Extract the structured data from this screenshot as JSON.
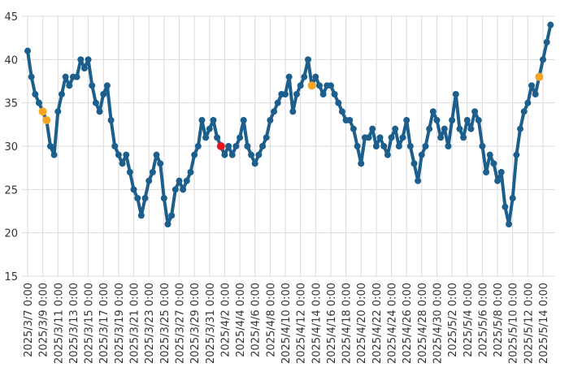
{
  "chart_data": {
    "type": "line",
    "x": [
      "2025/3/7 0:00",
      "2025/3/7 12:00",
      "2025/3/8 0:00",
      "2025/3/8 12:00",
      "2025/3/9 0:00",
      "2025/3/9 12:00",
      "2025/3/10 0:00",
      "2025/3/10 12:00",
      "2025/3/11 0:00",
      "2025/3/11 12:00",
      "2025/3/12 0:00",
      "2025/3/12 12:00",
      "2025/3/13 0:00",
      "2025/3/13 12:00",
      "2025/3/14 0:00",
      "2025/3/14 12:00",
      "2025/3/15 0:00",
      "2025/3/15 12:00",
      "2025/3/16 0:00",
      "2025/3/16 12:00",
      "2025/3/17 0:00",
      "2025/3/17 12:00",
      "2025/3/18 0:00",
      "2025/3/18 12:00",
      "2025/3/19 0:00",
      "2025/3/19 12:00",
      "2025/3/20 0:00",
      "2025/3/20 12:00",
      "2025/3/21 0:00",
      "2025/3/21 12:00",
      "2025/3/22 0:00",
      "2025/3/22 12:00",
      "2025/3/23 0:00",
      "2025/3/23 12:00",
      "2025/3/24 0:00",
      "2025/3/24 12:00",
      "2025/3/25 0:00",
      "2025/3/25 12:00",
      "2025/3/26 0:00",
      "2025/3/26 12:00",
      "2025/3/27 0:00",
      "2025/3/27 12:00",
      "2025/3/28 0:00",
      "2025/3/28 12:00",
      "2025/3/29 0:00",
      "2025/3/29 12:00",
      "2025/3/30 0:00",
      "2025/3/30 12:00",
      "2025/3/31 0:00",
      "2025/3/31 12:00",
      "2025/4/1 0:00",
      "2025/4/1 12:00",
      "2025/4/2 0:00",
      "2025/4/2 12:00",
      "2025/4/3 0:00",
      "2025/4/3 12:00",
      "2025/4/4 0:00",
      "2025/4/4 12:00",
      "2025/4/5 0:00",
      "2025/4/5 12:00",
      "2025/4/6 0:00",
      "2025/4/6 12:00",
      "2025/4/7 0:00",
      "2025/4/7 12:00",
      "2025/4/8 0:00",
      "2025/4/8 12:00",
      "2025/4/9 0:00",
      "2025/4/9 12:00",
      "2025/4/10 0:00",
      "2025/4/10 12:00",
      "2025/4/11 0:00",
      "2025/4/11 12:00",
      "2025/4/12 0:00",
      "2025/4/12 12:00",
      "2025/4/13 0:00",
      "2025/4/13 12:00",
      "2025/4/14 0:00",
      "2025/4/14 12:00",
      "2025/4/15 0:00",
      "2025/4/15 12:00",
      "2025/4/16 0:00",
      "2025/4/16 12:00",
      "2025/4/17 0:00",
      "2025/4/17 12:00",
      "2025/4/18 0:00",
      "2025/4/18 12:00",
      "2025/4/19 0:00",
      "2025/4/19 12:00",
      "2025/4/20 0:00",
      "2025/4/20 12:00",
      "2025/4/21 0:00",
      "2025/4/21 12:00",
      "2025/4/22 0:00",
      "2025/4/22 12:00",
      "2025/4/23 0:00",
      "2025/4/23 12:00",
      "2025/4/24 0:00",
      "2025/4/24 12:00",
      "2025/4/25 0:00",
      "2025/4/25 12:00",
      "2025/4/26 0:00",
      "2025/4/26 12:00",
      "2025/4/27 0:00",
      "2025/4/27 12:00",
      "2025/4/28 0:00",
      "2025/4/28 12:00",
      "2025/4/29 0:00",
      "2025/4/29 12:00",
      "2025/4/30 0:00",
      "2025/4/30 12:00",
      "2025/5/1 0:00",
      "2025/5/1 12:00",
      "2025/5/2 0:00",
      "2025/5/2 12:00",
      "2025/5/3 0:00",
      "2025/5/3 12:00",
      "2025/5/4 0:00",
      "2025/5/4 12:00",
      "2025/5/5 0:00",
      "2025/5/5 12:00",
      "2025/5/6 0:00",
      "2025/5/6 12:00",
      "2025/5/7 0:00",
      "2025/5/7 12:00",
      "2025/5/8 0:00",
      "2025/5/8 12:00",
      "2025/5/9 0:00",
      "2025/5/9 12:00",
      "2025/5/10 0:00",
      "2025/5/10 12:00",
      "2025/5/11 0:00",
      "2025/5/11 12:00",
      "2025/5/12 0:00",
      "2025/5/12 12:00",
      "2025/5/13 0:00",
      "2025/5/13 12:00",
      "2025/5/14 0:00",
      "2025/5/14 12:00",
      "2025/5/15 0:00"
    ],
    "series": [
      {
        "color": "#1d5f8c",
        "values": [
          41,
          38,
          36,
          35,
          34,
          33,
          30,
          29,
          34,
          36,
          38,
          37,
          38,
          38,
          40,
          39,
          40,
          37,
          35,
          34,
          36,
          37,
          33,
          30,
          29,
          28,
          29,
          27,
          25,
          24,
          22,
          24,
          26,
          27,
          29,
          28,
          24,
          21,
          22,
          25,
          26,
          25,
          26,
          27,
          29,
          30,
          33,
          31,
          32,
          33,
          31,
          30,
          29,
          30,
          29,
          30,
          31,
          33,
          30,
          29,
          28,
          29,
          30,
          31,
          33,
          34,
          35,
          36,
          36,
          38,
          34,
          36,
          37,
          38,
          40,
          37,
          38,
          37,
          36,
          37,
          37,
          36,
          35,
          34,
          33,
          33,
          32,
          30,
          28,
          31,
          31,
          32,
          30,
          31,
          30,
          29,
          31,
          32,
          30,
          31,
          33,
          30,
          28,
          26,
          29,
          30,
          32,
          34,
          33,
          31,
          32,
          30,
          33,
          36,
          32,
          31,
          33,
          32,
          34,
          33,
          30,
          27,
          29,
          28,
          26,
          27,
          23,
          21,
          24,
          29,
          32,
          34,
          35,
          37,
          36,
          38,
          40,
          42,
          44
        ]
      }
    ],
    "highlights": [
      {
        "x": "2025/3/9 0:00",
        "value": 34,
        "color": "#f5a623"
      },
      {
        "x": "2025/3/9 12:00",
        "value": 33,
        "color": "#f5a623"
      },
      {
        "x": "2025/4/1 12:00",
        "value": 30,
        "color": "#e8141b"
      },
      {
        "x": "2025/4/13 12:00",
        "value": 37,
        "color": "#f5a623"
      },
      {
        "x": "2025/5/13 12:00",
        "value": 38,
        "color": "#f5a623"
      }
    ],
    "ylim": [
      15,
      45
    ],
    "yticks": [
      15,
      20,
      25,
      30,
      35,
      40,
      45
    ],
    "xticks": [
      "2025/3/7 0:00",
      "2025/3/9 0:00",
      "2025/3/11 0:00",
      "2025/3/13 0:00",
      "2025/3/15 0:00",
      "2025/3/17 0:00",
      "2025/3/19 0:00",
      "2025/3/21 0:00",
      "2025/3/23 0:00",
      "2025/3/25 0:00",
      "2025/3/27 0:00",
      "2025/3/29 0:00",
      "2025/3/31 0:00",
      "2025/4/2 0:00",
      "2025/4/4 0:00",
      "2025/4/6 0:00",
      "2025/4/8 0:00",
      "2025/4/10 0:00",
      "2025/4/12 0:00",
      "2025/4/14 0:00",
      "2025/4/16 0:00",
      "2025/4/18 0:00",
      "2025/4/20 0:00",
      "2025/4/22 0:00",
      "2025/4/24 0:00",
      "2025/4/26 0:00",
      "2025/4/28 0:00",
      "2025/4/30 0:00",
      "2025/5/2 0:00",
      "2025/5/4 0:00",
      "2025/5/6 0:00",
      "2025/5/8 0:00",
      "2025/5/10 0:00",
      "2025/5/12 0:00",
      "2025/5/14 0:00"
    ],
    "grid": true
  }
}
